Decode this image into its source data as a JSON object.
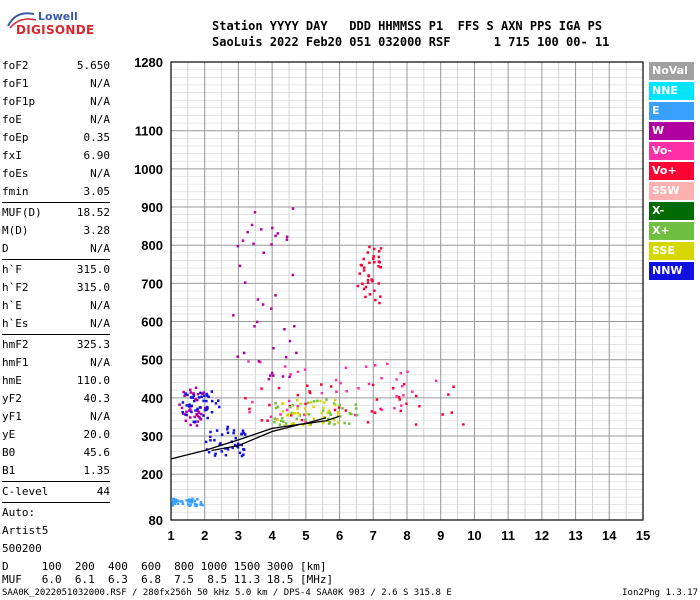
{
  "logo": {
    "line1": "Lowell",
    "line2": "DIGISONDE"
  },
  "header": {
    "columns": "Station YYYY DAY   DDD HHMMSS P1  FFS S AXN PPS IGA PS",
    "values": "SaoLuis 2022 Feb20 051 032000 RSF      1 715 100 00- 11"
  },
  "params": [
    {
      "label": "foF2",
      "value": "5.650"
    },
    {
      "label": "foF1",
      "value": "N/A"
    },
    {
      "label": "foF1p",
      "value": "N/A"
    },
    {
      "label": "foE",
      "value": "N/A"
    },
    {
      "label": "foEp",
      "value": "0.35"
    },
    {
      "label": "fxI",
      "value": "6.90"
    },
    {
      "label": "foEs",
      "value": "N/A"
    },
    {
      "label": "fmin",
      "value": "3.05"
    },
    {
      "sep": true
    },
    {
      "label": "MUF(D)",
      "value": "18.52"
    },
    {
      "label": "M(D)",
      "value": "3.28"
    },
    {
      "label": "D",
      "value": "N/A"
    },
    {
      "sep": true
    },
    {
      "label": "h`F",
      "value": "315.0"
    },
    {
      "label": "h`F2",
      "value": "315.0"
    },
    {
      "label": "h`E",
      "value": "N/A"
    },
    {
      "label": "h`Es",
      "value": "N/A"
    },
    {
      "sep": true
    },
    {
      "label": "hmF2",
      "value": "325.3"
    },
    {
      "label": "hmF1",
      "value": "N/A"
    },
    {
      "label": "hmE",
      "value": "110.0"
    },
    {
      "label": "yF2",
      "value": "40.3"
    },
    {
      "label": "yF1",
      "value": "N/A"
    },
    {
      "label": "yE",
      "value": "20.0"
    },
    {
      "label": "B0",
      "value": "45.6"
    },
    {
      "label": "B1",
      "value": "1.35"
    },
    {
      "sep": true
    },
    {
      "label": "C-level",
      "value": "44"
    },
    {
      "sep": true
    },
    {
      "text": "Auto:"
    },
    {
      "text": "Artist5"
    },
    {
      "text": "500200"
    }
  ],
  "legend": [
    {
      "label": "NoVal",
      "color": "#a0a0a0"
    },
    {
      "label": "NNE",
      "color": "#00e5ff"
    },
    {
      "label": "E",
      "color": "#3aa0ff"
    },
    {
      "label": "W",
      "color": "#b0009f"
    },
    {
      "label": "Vo-",
      "color": "#ff2fa8"
    },
    {
      "label": "Vo+",
      "color": "#ff0032"
    },
    {
      "label": "SSW",
      "color": "#ffb0b0"
    },
    {
      "label": "X-",
      "color": "#006b00"
    },
    {
      "label": "X+",
      "color": "#6fbf40"
    },
    {
      "label": "SSE",
      "color": "#d6d600"
    },
    {
      "label": "NNW",
      "color": "#1010e0"
    }
  ],
  "footer": {
    "line1": "D     100  200  400  600  800 1000 1500 3000 [km]",
    "line2": "MUF   6.0  6.1  6.3  6.8  7.5  8.5 11.3 18.5 [MHz]",
    "left": "SAA0K_2022051032000.RSF / 280fx256h 50 kHz 5.0 km / DPS-4 SAA0K 903 / 2.6 S 315.8 E",
    "right": "Ion2Png 1.3.17"
  },
  "chart_data": {
    "type": "scatter",
    "x_ticks": [
      1,
      2,
      3,
      4,
      5,
      6,
      7,
      8,
      9,
      10,
      11,
      12,
      13,
      14,
      15
    ],
    "y_ticks": [
      80,
      200,
      300,
      400,
      500,
      600,
      700,
      800,
      900,
      1000,
      1100,
      1280
    ],
    "xlim": [
      1,
      15
    ],
    "ylim": [
      80,
      1280
    ],
    "grid": true,
    "regions": [
      {
        "color_class": "W",
        "x_range": [
          1.2,
          2.0
        ],
        "y_range": [
          330,
          430
        ]
      },
      {
        "color_class": "NNW",
        "x_range": [
          1.3,
          2.4
        ],
        "y_range": [
          340,
          420
        ]
      },
      {
        "color_class": "Vo+",
        "x_range": [
          3.0,
          9.8
        ],
        "y_range": [
          330,
          440
        ]
      },
      {
        "color_class": "Vo-",
        "x_range": [
          3.0,
          9.0
        ],
        "y_range": [
          340,
          500
        ]
      },
      {
        "color_class": "X+",
        "x_range": [
          4.0,
          6.5
        ],
        "y_range": [
          330,
          400
        ]
      },
      {
        "color_class": "SSE",
        "x_range": [
          4.0,
          6.0
        ],
        "y_range": [
          330,
          400
        ]
      },
      {
        "color_class": "W",
        "x_range": [
          2.8,
          4.8
        ],
        "y_range": [
          450,
          900
        ]
      },
      {
        "color_class": "Vo+",
        "x_range": [
          6.5,
          7.2
        ],
        "y_range": [
          650,
          800
        ]
      },
      {
        "color_class": "NNW",
        "x_range": [
          2.0,
          3.2
        ],
        "y_range": [
          250,
          330
        ]
      },
      {
        "color_class": "E",
        "x_range": [
          1.0,
          2.0
        ],
        "y_range": [
          120,
          140
        ]
      }
    ],
    "traces": [
      {
        "name": "O-trace",
        "points": [
          [
            1.0,
            240
          ],
          [
            2.0,
            262
          ],
          [
            3.0,
            290
          ],
          [
            4.0,
            320
          ],
          [
            5.0,
            333
          ],
          [
            5.6,
            348
          ]
        ]
      },
      {
        "name": "X-trace",
        "points": [
          [
            2.2,
            262
          ],
          [
            3.0,
            275
          ],
          [
            4.0,
            312
          ],
          [
            4.8,
            330
          ],
          [
            5.6,
            340
          ],
          [
            6.0,
            352
          ]
        ]
      }
    ]
  }
}
